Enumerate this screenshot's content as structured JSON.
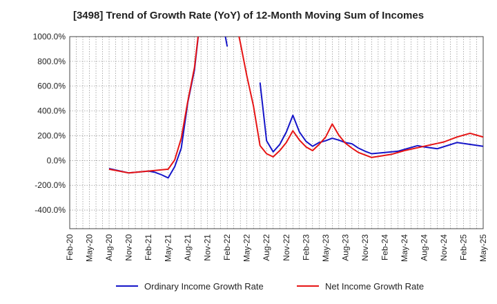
{
  "chart_data": {
    "type": "line",
    "title": "[3498]  Trend of Growth Rate (YoY) of 12-Month Moving Sum of Incomes",
    "ylim": [
      -550,
      1000
    ],
    "yticks": [
      "1000.0%",
      "800.0%",
      "600.0%",
      "400.0%",
      "200.0%",
      "0.0%",
      "-200.0%",
      "-400.0%"
    ],
    "ytick_values": [
      1000,
      800,
      600,
      400,
      200,
      0,
      -200,
      -400
    ],
    "xticks": [
      "Feb-20",
      "May-20",
      "Aug-20",
      "Nov-20",
      "Feb-21",
      "May-21",
      "Aug-21",
      "Nov-21",
      "Feb-22",
      "May-22",
      "Aug-22",
      "Nov-22",
      "Feb-23",
      "May-23",
      "Aug-23",
      "Nov-23",
      "Feb-24",
      "May-24",
      "Aug-24",
      "Nov-24",
      "Feb-25",
      "May-25"
    ],
    "x_start": "Feb-20",
    "x_end": "May-25",
    "grid": true,
    "legend_position": "bottom",
    "series": [
      {
        "name": "Ordinary Income Growth Rate",
        "color": "#1414c8",
        "points": [
          [
            "Aug-20",
            -65
          ],
          [
            "Nov-20",
            -100
          ],
          [
            "Feb-21",
            -85
          ],
          [
            "Mar-21",
            -95
          ],
          [
            "Apr-21",
            -115
          ],
          [
            "May-21",
            -140
          ],
          [
            "Jun-21",
            -50
          ],
          [
            "Jul-21",
            100
          ],
          [
            "Aug-21",
            470
          ],
          [
            "Sep-21",
            730
          ],
          [
            "Oct-21",
            1200
          ],
          null,
          [
            "Jan-22",
            1200
          ],
          [
            "Feb-22",
            920
          ],
          null,
          [
            "Jul-22",
            630
          ],
          [
            "Aug-22",
            160
          ],
          [
            "Sep-22",
            70
          ],
          [
            "Oct-22",
            130
          ],
          [
            "Nov-22",
            230
          ],
          [
            "Dec-22",
            365
          ],
          [
            "Jan-23",
            230
          ],
          [
            "Feb-23",
            155
          ],
          [
            "Mar-23",
            115
          ],
          [
            "Apr-23",
            145
          ],
          [
            "May-23",
            160
          ],
          [
            "Jun-23",
            180
          ],
          [
            "Jul-23",
            165
          ],
          [
            "Aug-23",
            145
          ],
          [
            "Sep-23",
            135
          ],
          [
            "Oct-23",
            100
          ],
          [
            "Nov-23",
            75
          ],
          [
            "Dec-23",
            55
          ],
          [
            "Feb-24",
            65
          ],
          [
            "Apr-24",
            75
          ],
          [
            "May-24",
            90
          ],
          [
            "Jul-24",
            120
          ],
          [
            "Aug-24",
            110
          ],
          [
            "Oct-24",
            95
          ],
          [
            "Jan-25",
            145
          ],
          [
            "Mar-25",
            130
          ],
          [
            "May-25",
            115
          ]
        ]
      },
      {
        "name": "Net Income Growth Rate",
        "color": "#e61414",
        "points": [
          [
            "Aug-20",
            -70
          ],
          [
            "Nov-20",
            -100
          ],
          [
            "Feb-21",
            -85
          ],
          [
            "May-21",
            -70
          ],
          [
            "Jun-21",
            5
          ],
          [
            "Jul-21",
            180
          ],
          [
            "Aug-21",
            480
          ],
          [
            "Sep-21",
            750
          ],
          [
            "Oct-21",
            1200
          ],
          null,
          [
            "Mar-22",
            1200
          ],
          [
            "Apr-22",
            950
          ],
          [
            "May-22",
            680
          ],
          [
            "Jun-22",
            440
          ],
          [
            "Jul-22",
            120
          ],
          [
            "Aug-22",
            55
          ],
          [
            "Sep-22",
            30
          ],
          [
            "Oct-22",
            80
          ],
          [
            "Nov-22",
            145
          ],
          [
            "Dec-22",
            240
          ],
          [
            "Jan-23",
            165
          ],
          [
            "Feb-23",
            110
          ],
          [
            "Mar-23",
            80
          ],
          [
            "Apr-23",
            130
          ],
          [
            "May-23",
            190
          ],
          [
            "Jun-23",
            295
          ],
          [
            "Jul-23",
            205
          ],
          [
            "Aug-23",
            140
          ],
          [
            "Sep-23",
            100
          ],
          [
            "Oct-23",
            65
          ],
          [
            "Nov-23",
            45
          ],
          [
            "Dec-23",
            25
          ],
          [
            "Mar-24",
            50
          ],
          [
            "May-24",
            80
          ],
          [
            "Aug-24",
            115
          ],
          [
            "Nov-24",
            150
          ],
          [
            "Jan-25",
            190
          ],
          [
            "Mar-25",
            220
          ],
          [
            "Jun-25",
            175
          ],
          [
            "Aug-25",
            145
          ]
        ]
      }
    ]
  }
}
